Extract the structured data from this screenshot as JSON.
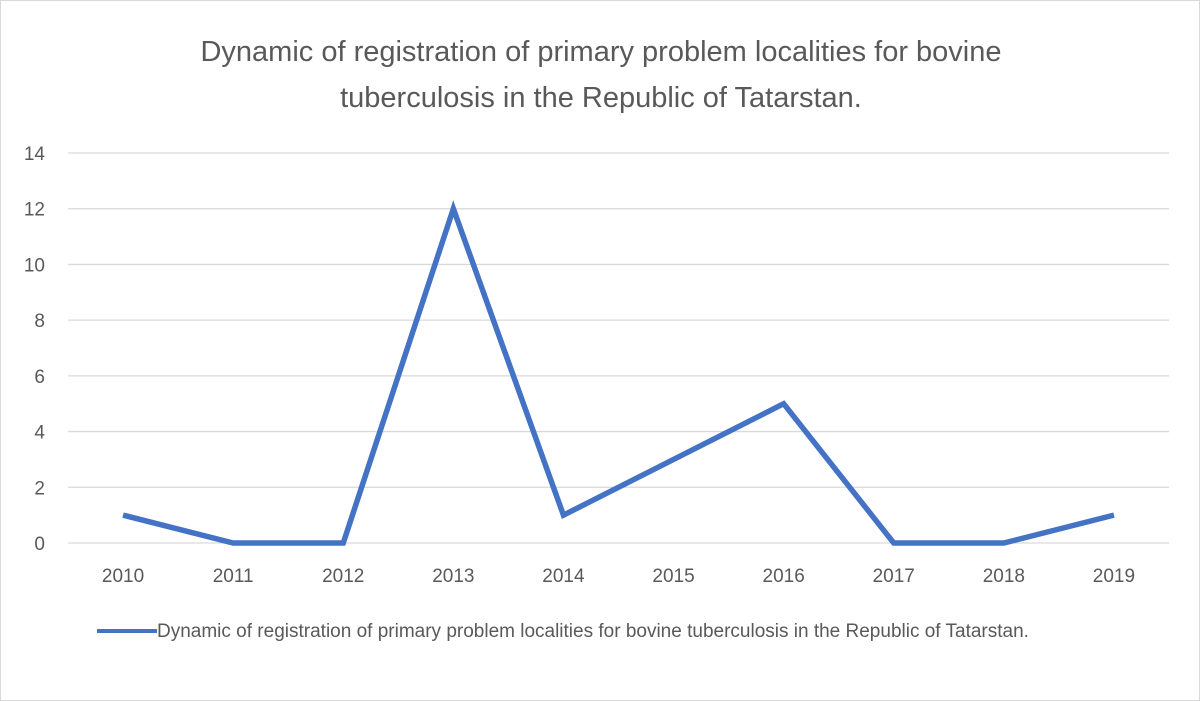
{
  "chart_data": {
    "type": "line",
    "title": "Dynamic of registration of primary problem localities for bovine tuberculosis in the Republic of Tatarstan.",
    "categories": [
      "2010",
      "2011",
      "2012",
      "2013",
      "2014",
      "2015",
      "2016",
      "2017",
      "2018",
      "2019"
    ],
    "series": [
      {
        "name": "Dynamic of registration of primary problem localities for bovine tuberculosis in the Republic of Tatarstan.",
        "values": [
          1,
          0,
          0,
          12,
          1,
          3,
          5,
          0,
          0,
          1
        ],
        "color": "#4472c4"
      }
    ],
    "ylim": [
      0,
      14
    ],
    "yticks": [
      "0",
      "2",
      "4",
      "6",
      "8",
      "10",
      "12",
      "14"
    ],
    "grid": true,
    "legend": "bottom",
    "xlabel": "",
    "ylabel": ""
  }
}
